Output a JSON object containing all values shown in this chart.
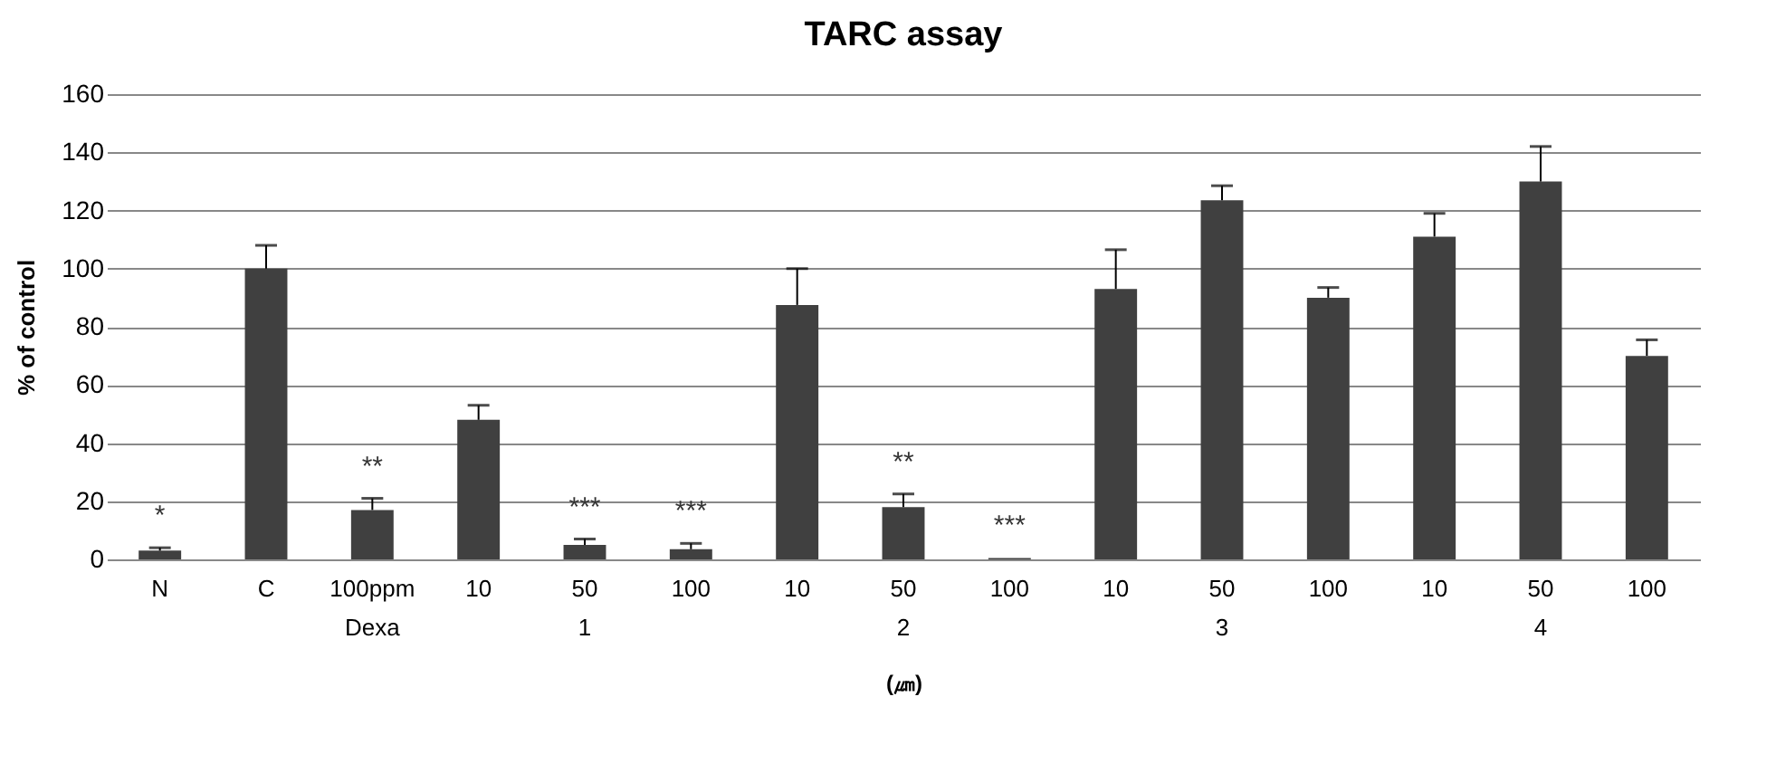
{
  "chart_data": {
    "type": "bar",
    "title": "TARC  assay",
    "ylabel": "%  of  control",
    "xlabel": "(㎛)",
    "categories": [
      "N",
      "C",
      "100ppm",
      "10",
      "50",
      "100",
      "10",
      "50",
      "100",
      "10",
      "50",
      "100",
      "10",
      "50",
      "100"
    ],
    "values": [
      3,
      100,
      17,
      48,
      5,
      3.5,
      87.5,
      18,
      0.5,
      93,
      123.5,
      90,
      111,
      130,
      70
    ],
    "errors": [
      [
        3,
        4
      ],
      [
        100,
        108
      ],
      [
        17,
        21
      ],
      [
        48,
        53
      ],
      [
        5,
        7
      ],
      [
        3.5,
        5.5
      ],
      [
        87.5,
        100
      ],
      [
        18,
        22.5
      ],
      null,
      [
        93,
        106.5
      ],
      [
        123.5,
        128.5
      ],
      [
        90,
        93.5
      ],
      [
        111,
        119
      ],
      [
        130,
        142
      ],
      [
        70,
        75.5
      ]
    ],
    "color": "#404040",
    "ylim": [
      0,
      160
    ],
    "yticks": [
      0,
      20,
      40,
      60,
      80,
      100,
      120,
      140,
      160
    ],
    "grid": "y",
    "value_labels": [
      "*",
      null,
      "**",
      null,
      "***",
      "***",
      null,
      "**",
      "***",
      null,
      null,
      null,
      null,
      null,
      null
    ],
    "annotations": [
      "Dexa",
      "1",
      "2",
      "3",
      "4"
    ]
  }
}
